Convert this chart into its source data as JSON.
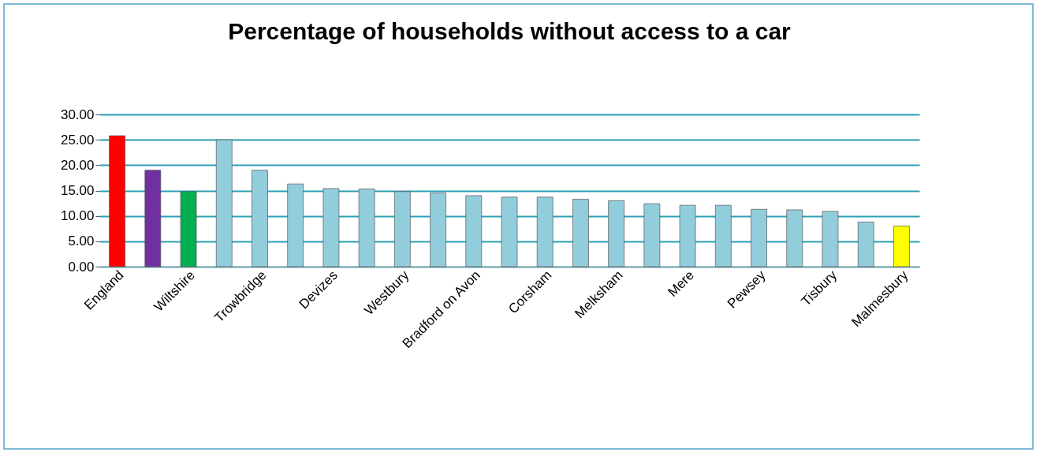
{
  "chart_data": {
    "type": "bar",
    "title": "Percentage of households without access to a car",
    "categories": [
      "England",
      null,
      "Wiltshire",
      null,
      "Trowbridge",
      null,
      "Devizes",
      null,
      "Westbury",
      null,
      "Bradford on Avon",
      null,
      "Corsham",
      null,
      "Melksham",
      null,
      "Mere",
      null,
      "Pewsey",
      null,
      "Tisbury",
      null,
      "Malmesbury"
    ],
    "values": [
      25.8,
      19.0,
      14.8,
      25.0,
      19.0,
      16.3,
      15.4,
      15.3,
      14.8,
      14.5,
      14.0,
      13.7,
      13.7,
      13.3,
      13.0,
      12.4,
      12.1,
      12.1,
      11.3,
      11.2,
      10.9,
      8.8,
      8.0
    ],
    "colors": [
      "#ff0000",
      "#7030a0",
      "#00b050",
      "#92cddc",
      "#92cddc",
      "#92cddc",
      "#92cddc",
      "#92cddc",
      "#92cddc",
      "#92cddc",
      "#92cddc",
      "#92cddc",
      "#92cddc",
      "#92cddc",
      "#92cddc",
      "#92cddc",
      "#92cddc",
      "#92cddc",
      "#92cddc",
      "#92cddc",
      "#92cddc",
      "#92cddc",
      "#ffff00"
    ],
    "ylim": [
      0,
      30
    ],
    "yticks": [
      {
        "value": 0,
        "label": "0.00"
      },
      {
        "value": 5,
        "label": "5.00"
      },
      {
        "value": 10,
        "label": "10.00"
      },
      {
        "value": 15,
        "label": "15.00"
      },
      {
        "value": 20,
        "label": "20.00"
      },
      {
        "value": 25,
        "label": "25.00"
      },
      {
        "value": 30,
        "label": "30.00"
      }
    ],
    "grid": "y"
  }
}
